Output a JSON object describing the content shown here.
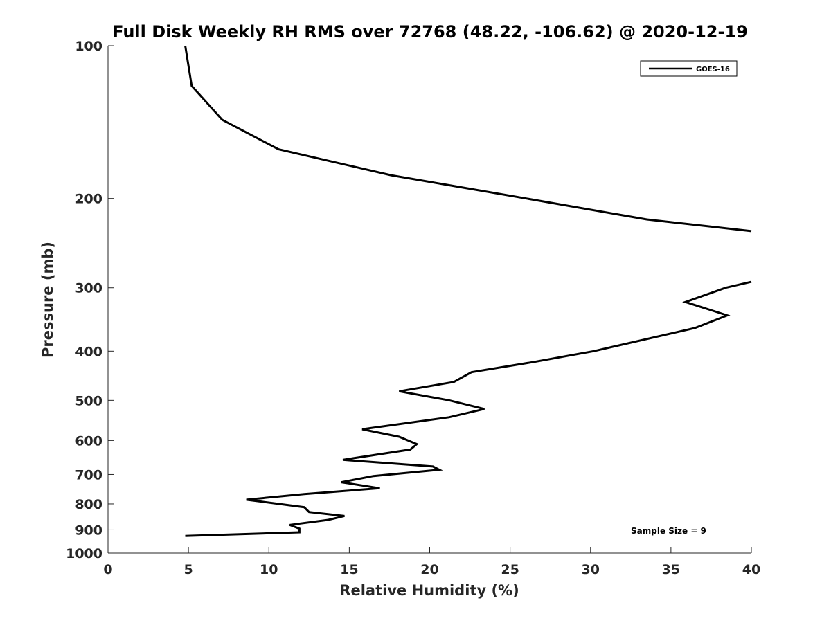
{
  "chart_data": {
    "type": "line",
    "title": "Full Disk Weekly RH RMS over 72768 (48.22, -106.62) @ 2020-12-19",
    "xlabel": "Relative Humidity (%)",
    "ylabel": "Pressure (mb)",
    "xlim": [
      0,
      40
    ],
    "ylim": [
      100,
      1000
    ],
    "y_scale": "log",
    "y_reversed": true,
    "x_ticks": [
      "0",
      "5",
      "10",
      "15",
      "20",
      "25",
      "30",
      "35",
      "40"
    ],
    "y_ticks": [
      "100",
      "200",
      "300",
      "400",
      "500",
      "600",
      "700",
      "800",
      "900",
      "1000"
    ],
    "grid": false,
    "legend_position": "top-right",
    "annotation": "Sample Size = 9",
    "series": [
      {
        "name": "GOES-16",
        "color": "#000000",
        "segments": [
          [
            {
              "x": 4.8,
              "y": 100
            },
            {
              "x": 5.2,
              "y": 120
            },
            {
              "x": 7.1,
              "y": 140
            },
            {
              "x": 10.6,
              "y": 160
            },
            {
              "x": 17.6,
              "y": 180
            },
            {
              "x": 26.0,
              "y": 200
            },
            {
              "x": 33.5,
              "y": 220
            },
            {
              "x": 40.0,
              "y": 232
            }
          ],
          [
            {
              "x": 40.0,
              "y": 292
            },
            {
              "x": 38.4,
              "y": 300
            },
            {
              "x": 35.9,
              "y": 320
            },
            {
              "x": 38.5,
              "y": 340
            },
            {
              "x": 36.5,
              "y": 360
            },
            {
              "x": 30.2,
              "y": 400
            },
            {
              "x": 26.5,
              "y": 420
            },
            {
              "x": 22.6,
              "y": 440
            },
            {
              "x": 21.5,
              "y": 460
            },
            {
              "x": 18.1,
              "y": 480
            },
            {
              "x": 21.2,
              "y": 500
            },
            {
              "x": 23.4,
              "y": 520
            },
            {
              "x": 21.2,
              "y": 540
            },
            {
              "x": 15.8,
              "y": 570
            },
            {
              "x": 18.1,
              "y": 590
            },
            {
              "x": 19.2,
              "y": 610
            },
            {
              "x": 18.8,
              "y": 625
            },
            {
              "x": 14.6,
              "y": 655
            },
            {
              "x": 20.2,
              "y": 675
            },
            {
              "x": 20.6,
              "y": 685
            },
            {
              "x": 16.5,
              "y": 705
            },
            {
              "x": 14.5,
              "y": 725
            },
            {
              "x": 16.9,
              "y": 745
            },
            {
              "x": 12.2,
              "y": 765
            },
            {
              "x": 8.6,
              "y": 785
            },
            {
              "x": 12.2,
              "y": 812
            },
            {
              "x": 12.5,
              "y": 830
            },
            {
              "x": 14.7,
              "y": 845
            },
            {
              "x": 13.7,
              "y": 860
            },
            {
              "x": 11.3,
              "y": 880
            },
            {
              "x": 11.9,
              "y": 895
            },
            {
              "x": 11.9,
              "y": 910
            },
            {
              "x": 4.8,
              "y": 925
            }
          ]
        ]
      }
    ]
  }
}
